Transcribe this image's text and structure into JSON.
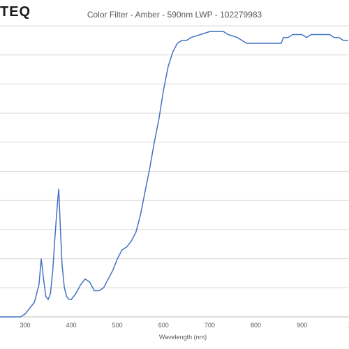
{
  "header": {
    "logo_text": "TEQ"
  },
  "chart_data": {
    "type": "line",
    "title": "Color Filter - Amber - 590nm LWP - 102279983",
    "xlabel": "Wavelength (nm)",
    "ylabel": "",
    "xlim": [
      200,
      1000
    ],
    "ylim": [
      0,
      100
    ],
    "x_ticks": [
      "300",
      "400",
      "500",
      "600",
      "700",
      "800",
      "900",
      "1"
    ],
    "grid": true,
    "series": [
      {
        "color": "#4472c4",
        "x": [
          200,
          290,
          300,
          310,
          320,
          330,
          335,
          340,
          345,
          350,
          355,
          360,
          365,
          370,
          373,
          376,
          380,
          385,
          390,
          395,
          400,
          410,
          420,
          430,
          440,
          450,
          460,
          470,
          480,
          490,
          500,
          510,
          520,
          530,
          540,
          550,
          560,
          570,
          580,
          590,
          600,
          610,
          620,
          630,
          640,
          650,
          660,
          680,
          700,
          720,
          730,
          740,
          760,
          780,
          800,
          820,
          850,
          855,
          860,
          870,
          880,
          890,
          900,
          910,
          920,
          930,
          940,
          950,
          960,
          970,
          980,
          990,
          1000
        ],
        "y": [
          0,
          0,
          1,
          3,
          5,
          11,
          20,
          13,
          7,
          6,
          8,
          16,
          28,
          39,
          44,
          32,
          18,
          10,
          7,
          6,
          6,
          8,
          11,
          13,
          12,
          9,
          9,
          10,
          13,
          16,
          20,
          23,
          24,
          26,
          29,
          35,
          43,
          51,
          60,
          68,
          78,
          86,
          91,
          94,
          95,
          95,
          96,
          97,
          98,
          98,
          98,
          97,
          96,
          94,
          94,
          94,
          94,
          94,
          96,
          96,
          97,
          97,
          97,
          96,
          97,
          97,
          97,
          97,
          97,
          96,
          96,
          95,
          95
        ]
      }
    ]
  }
}
